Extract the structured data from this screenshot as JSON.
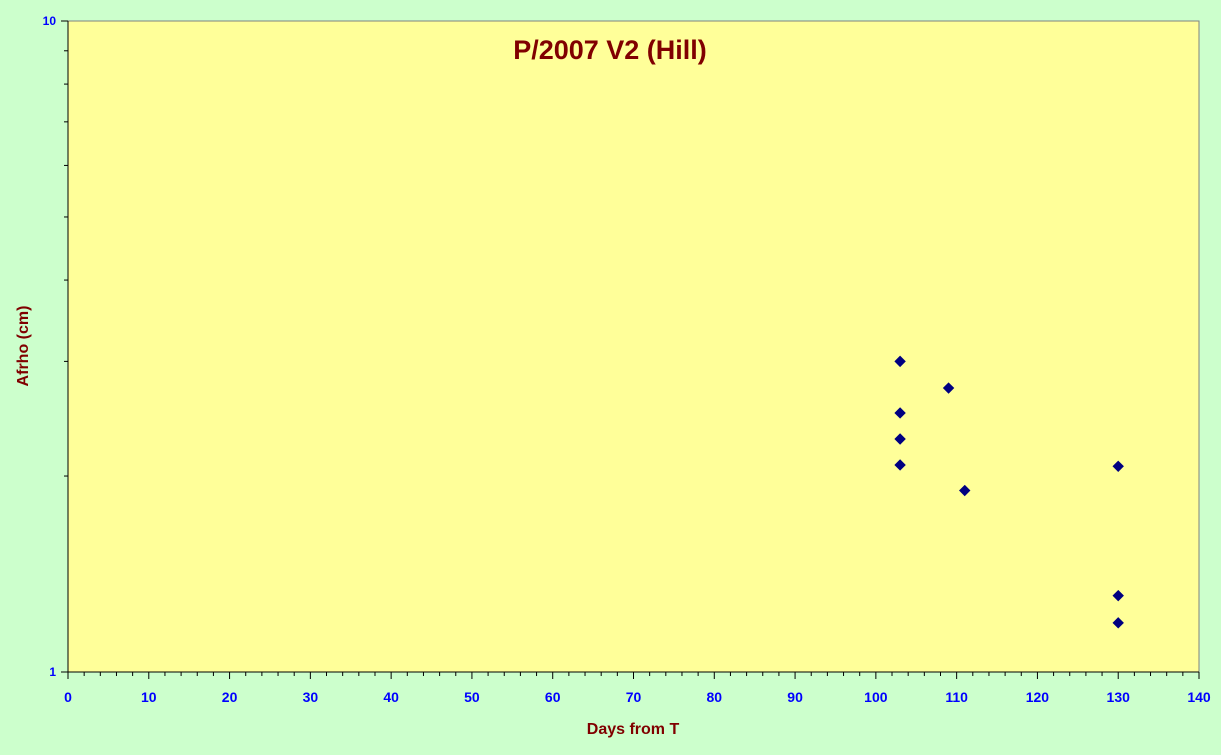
{
  "chart_data": {
    "type": "scatter",
    "title": "P/2007 V2 (Hill)",
    "xlabel": "Days from T",
    "ylabel": "Afrho (cm)",
    "xlim": [
      0,
      140
    ],
    "ylim": [
      1,
      10
    ],
    "yscale": "log",
    "x_ticks": [
      0,
      10,
      20,
      30,
      40,
      50,
      60,
      70,
      80,
      90,
      100,
      110,
      120,
      130,
      140
    ],
    "y_tick_labels": [
      "1",
      "10"
    ],
    "grid": false,
    "legend": "none",
    "series": [
      {
        "marker": "diamond",
        "points": [
          {
            "x": 103,
            "y": 3.0
          },
          {
            "x": 103,
            "y": 2.5
          },
          {
            "x": 103,
            "y": 2.28
          },
          {
            "x": 103,
            "y": 2.08
          },
          {
            "x": 109,
            "y": 2.73
          },
          {
            "x": 111,
            "y": 1.9
          },
          {
            "x": 130,
            "y": 2.07
          },
          {
            "x": 130,
            "y": 1.31
          },
          {
            "x": 130,
            "y": 1.19
          }
        ]
      }
    ]
  },
  "colors": {
    "background": "#ccffcc",
    "plot_area": "#ffff99",
    "title": "#800000",
    "axis_label": "#800000",
    "tick_label": "#0000ff",
    "marker": "#000080"
  }
}
